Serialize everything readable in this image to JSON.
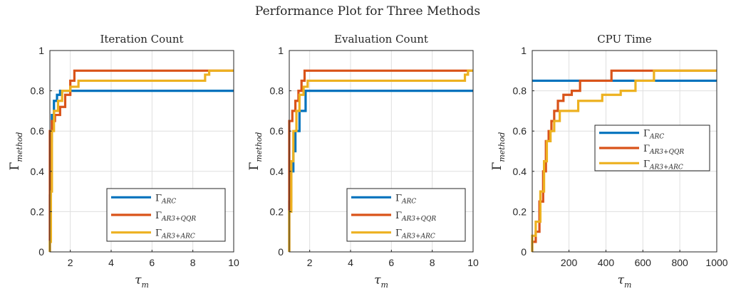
{
  "figure": {
    "title": "Performance Plot for Three Methods"
  },
  "colors": {
    "ARC": "#0072BD",
    "AR3+QQR": "#D95319",
    "AR3+ARC": "#EDB120",
    "grid": "#DFDFDF",
    "axis": "#262626"
  },
  "chart_data": [
    {
      "type": "line",
      "title": "Iteration Count",
      "xlabel": "τ_m",
      "ylabel": "Γ_method",
      "xlim": [
        1,
        10
      ],
      "ylim": [
        0,
        1
      ],
      "xticks": [
        2,
        4,
        6,
        8,
        10
      ],
      "yticks": [
        0,
        0.2,
        0.4,
        0.6,
        0.8,
        1
      ],
      "grid": true,
      "legend_position": "bottom-right",
      "series": [
        {
          "name": "Γ_ARC",
          "label_main": "Γ",
          "label_sub": "ARC",
          "x": [
            1.0,
            1.0,
            1.05,
            1.05,
            1.1,
            1.1,
            1.2,
            1.2,
            1.35,
            1.35,
            1.5,
            1.5,
            10
          ],
          "y": [
            0,
            0.28,
            0.28,
            0.55,
            0.55,
            0.68,
            0.68,
            0.75,
            0.75,
            0.78,
            0.78,
            0.8,
            0.8
          ]
        },
        {
          "name": "Γ_AR3+QQR",
          "label_main": "Γ",
          "label_sub": "AR3+QQR",
          "x": [
            1.0,
            1.0,
            1.1,
            1.1,
            1.25,
            1.25,
            1.5,
            1.5,
            1.75,
            1.75,
            2.0,
            2.0,
            2.2,
            2.2,
            10
          ],
          "y": [
            0,
            0.6,
            0.6,
            0.65,
            0.65,
            0.68,
            0.68,
            0.72,
            0.72,
            0.78,
            0.78,
            0.85,
            0.85,
            0.9,
            0.9
          ]
        },
        {
          "name": "Γ_AR3+ARC",
          "label_main": "Γ",
          "label_sub": "AR3+ARC",
          "x": [
            1.0,
            1.0,
            1.05,
            1.05,
            1.1,
            1.1,
            1.2,
            1.2,
            1.4,
            1.4,
            1.6,
            1.6,
            2.0,
            2.0,
            2.4,
            2.4,
            8.6,
            8.6,
            8.8,
            8.8,
            10
          ],
          "y": [
            0,
            0.05,
            0.05,
            0.3,
            0.3,
            0.6,
            0.6,
            0.7,
            0.7,
            0.75,
            0.75,
            0.8,
            0.8,
            0.82,
            0.82,
            0.85,
            0.85,
            0.88,
            0.88,
            0.9,
            0.9
          ]
        }
      ]
    },
    {
      "type": "line",
      "title": "Evaluation Count",
      "xlabel": "τ_m",
      "ylabel": "Γ_method",
      "xlim": [
        1,
        10
      ],
      "ylim": [
        0,
        1
      ],
      "xticks": [
        2,
        4,
        6,
        8,
        10
      ],
      "yticks": [
        0,
        0.2,
        0.4,
        0.6,
        0.8,
        1
      ],
      "grid": true,
      "legend_position": "bottom-right",
      "series": [
        {
          "name": "Γ_ARC",
          "label_main": "Γ",
          "label_sub": "ARC",
          "x": [
            1.0,
            1.0,
            1.1,
            1.1,
            1.2,
            1.2,
            1.3,
            1.3,
            1.5,
            1.5,
            1.8,
            1.8,
            10
          ],
          "y": [
            0,
            0.25,
            0.25,
            0.4,
            0.4,
            0.5,
            0.5,
            0.6,
            0.6,
            0.7,
            0.7,
            0.8,
            0.8
          ]
        },
        {
          "name": "Γ_AR3+QQR",
          "label_main": "Γ",
          "label_sub": "AR3+QQR",
          "x": [
            1.0,
            1.0,
            1.15,
            1.15,
            1.3,
            1.3,
            1.45,
            1.45,
            1.6,
            1.6,
            1.75,
            1.75,
            10
          ],
          "y": [
            0,
            0.65,
            0.65,
            0.7,
            0.7,
            0.75,
            0.75,
            0.8,
            0.8,
            0.85,
            0.85,
            0.9,
            0.9
          ]
        },
        {
          "name": "Γ_AR3+ARC",
          "label_main": "Γ",
          "label_sub": "AR3+ARC",
          "x": [
            1.0,
            1.0,
            1.1,
            1.1,
            1.2,
            1.2,
            1.35,
            1.35,
            1.5,
            1.5,
            1.7,
            1.7,
            1.9,
            1.9,
            9.6,
            9.6,
            9.75,
            9.75,
            10
          ],
          "y": [
            0,
            0.2,
            0.2,
            0.45,
            0.45,
            0.6,
            0.6,
            0.7,
            0.7,
            0.78,
            0.78,
            0.82,
            0.82,
            0.85,
            0.85,
            0.88,
            0.88,
            0.9,
            0.9
          ]
        }
      ]
    },
    {
      "type": "line",
      "title": "CPU Time",
      "xlabel": "τ_m",
      "ylabel": "Γ_method",
      "xlim": [
        1,
        1000
      ],
      "ylim": [
        0,
        1
      ],
      "xticks": [
        200,
        400,
        600,
        800,
        1000
      ],
      "yticks": [
        0,
        0.2,
        0.4,
        0.6,
        0.8,
        1
      ],
      "grid": true,
      "legend_position": "center-right",
      "series": [
        {
          "name": "Γ_ARC",
          "label_main": "Γ",
          "label_sub": "ARC",
          "x": [
            1,
            1000
          ],
          "y": [
            0.85,
            0.85
          ]
        },
        {
          "name": "Γ_AR3+QQR",
          "label_main": "Γ",
          "label_sub": "AR3+QQR",
          "x": [
            1,
            1,
            20,
            20,
            40,
            40,
            60,
            60,
            75,
            75,
            90,
            90,
            105,
            105,
            120,
            120,
            140,
            140,
            170,
            170,
            215,
            215,
            260,
            260,
            430,
            430,
            650,
            650,
            1000
          ],
          "y": [
            0,
            0.05,
            0.05,
            0.1,
            0.1,
            0.25,
            0.25,
            0.4,
            0.4,
            0.55,
            0.55,
            0.6,
            0.6,
            0.65,
            0.65,
            0.7,
            0.7,
            0.75,
            0.75,
            0.78,
            0.78,
            0.8,
            0.8,
            0.85,
            0.85,
            0.9,
            0.9,
            0.9,
            0.9
          ]
        },
        {
          "name": "Γ_AR3+ARC",
          "label_main": "Γ",
          "label_sub": "AR3+ARC",
          "x": [
            1,
            1,
            20,
            20,
            45,
            45,
            65,
            65,
            80,
            80,
            100,
            100,
            120,
            120,
            150,
            150,
            250,
            250,
            380,
            380,
            480,
            480,
            560,
            560,
            660,
            660,
            1000
          ],
          "y": [
            0,
            0.08,
            0.08,
            0.15,
            0.15,
            0.3,
            0.3,
            0.45,
            0.45,
            0.55,
            0.55,
            0.6,
            0.6,
            0.65,
            0.65,
            0.7,
            0.7,
            0.75,
            0.75,
            0.78,
            0.78,
            0.8,
            0.8,
            0.85,
            0.85,
            0.9,
            0.9
          ]
        }
      ]
    }
  ]
}
